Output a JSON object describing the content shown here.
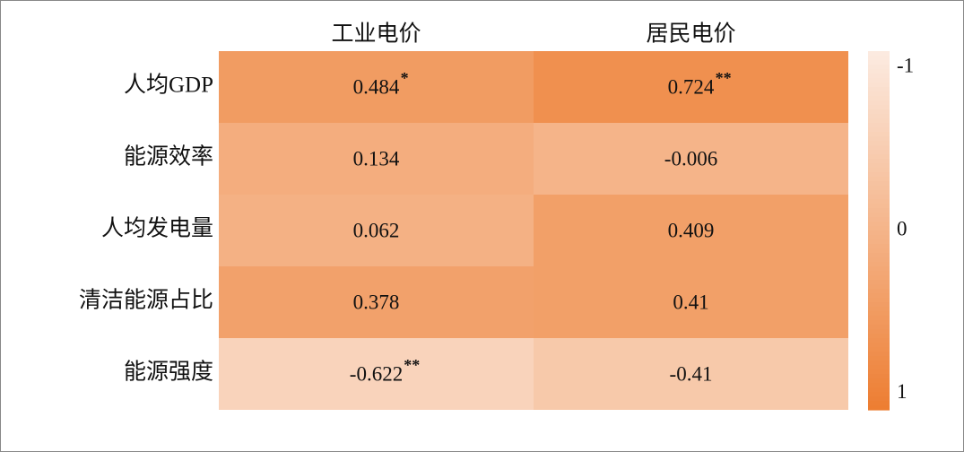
{
  "chart_data": {
    "type": "heatmap",
    "x_categories": [
      "工业电价",
      "居民电价"
    ],
    "y_categories": [
      "人均GDP",
      "能源效率",
      "人均发电量",
      "清洁能源占比",
      "能源强度"
    ],
    "values": [
      [
        0.484,
        0.724
      ],
      [
        0.134,
        -0.006
      ],
      [
        0.062,
        0.409
      ],
      [
        0.378,
        0.41
      ],
      [
        -0.622,
        -0.41
      ]
    ],
    "stars": [
      [
        "*",
        "**"
      ],
      [
        null,
        null
      ],
      [
        null,
        null
      ],
      [
        null,
        null
      ],
      [
        "**",
        null
      ]
    ],
    "colors": [
      "#fcebe1",
      "#ed7d31"
    ],
    "colorbar_lim": [
      -1.1,
      1.1
    ],
    "colorbar_ticks": [
      -1,
      0,
      1
    ]
  }
}
